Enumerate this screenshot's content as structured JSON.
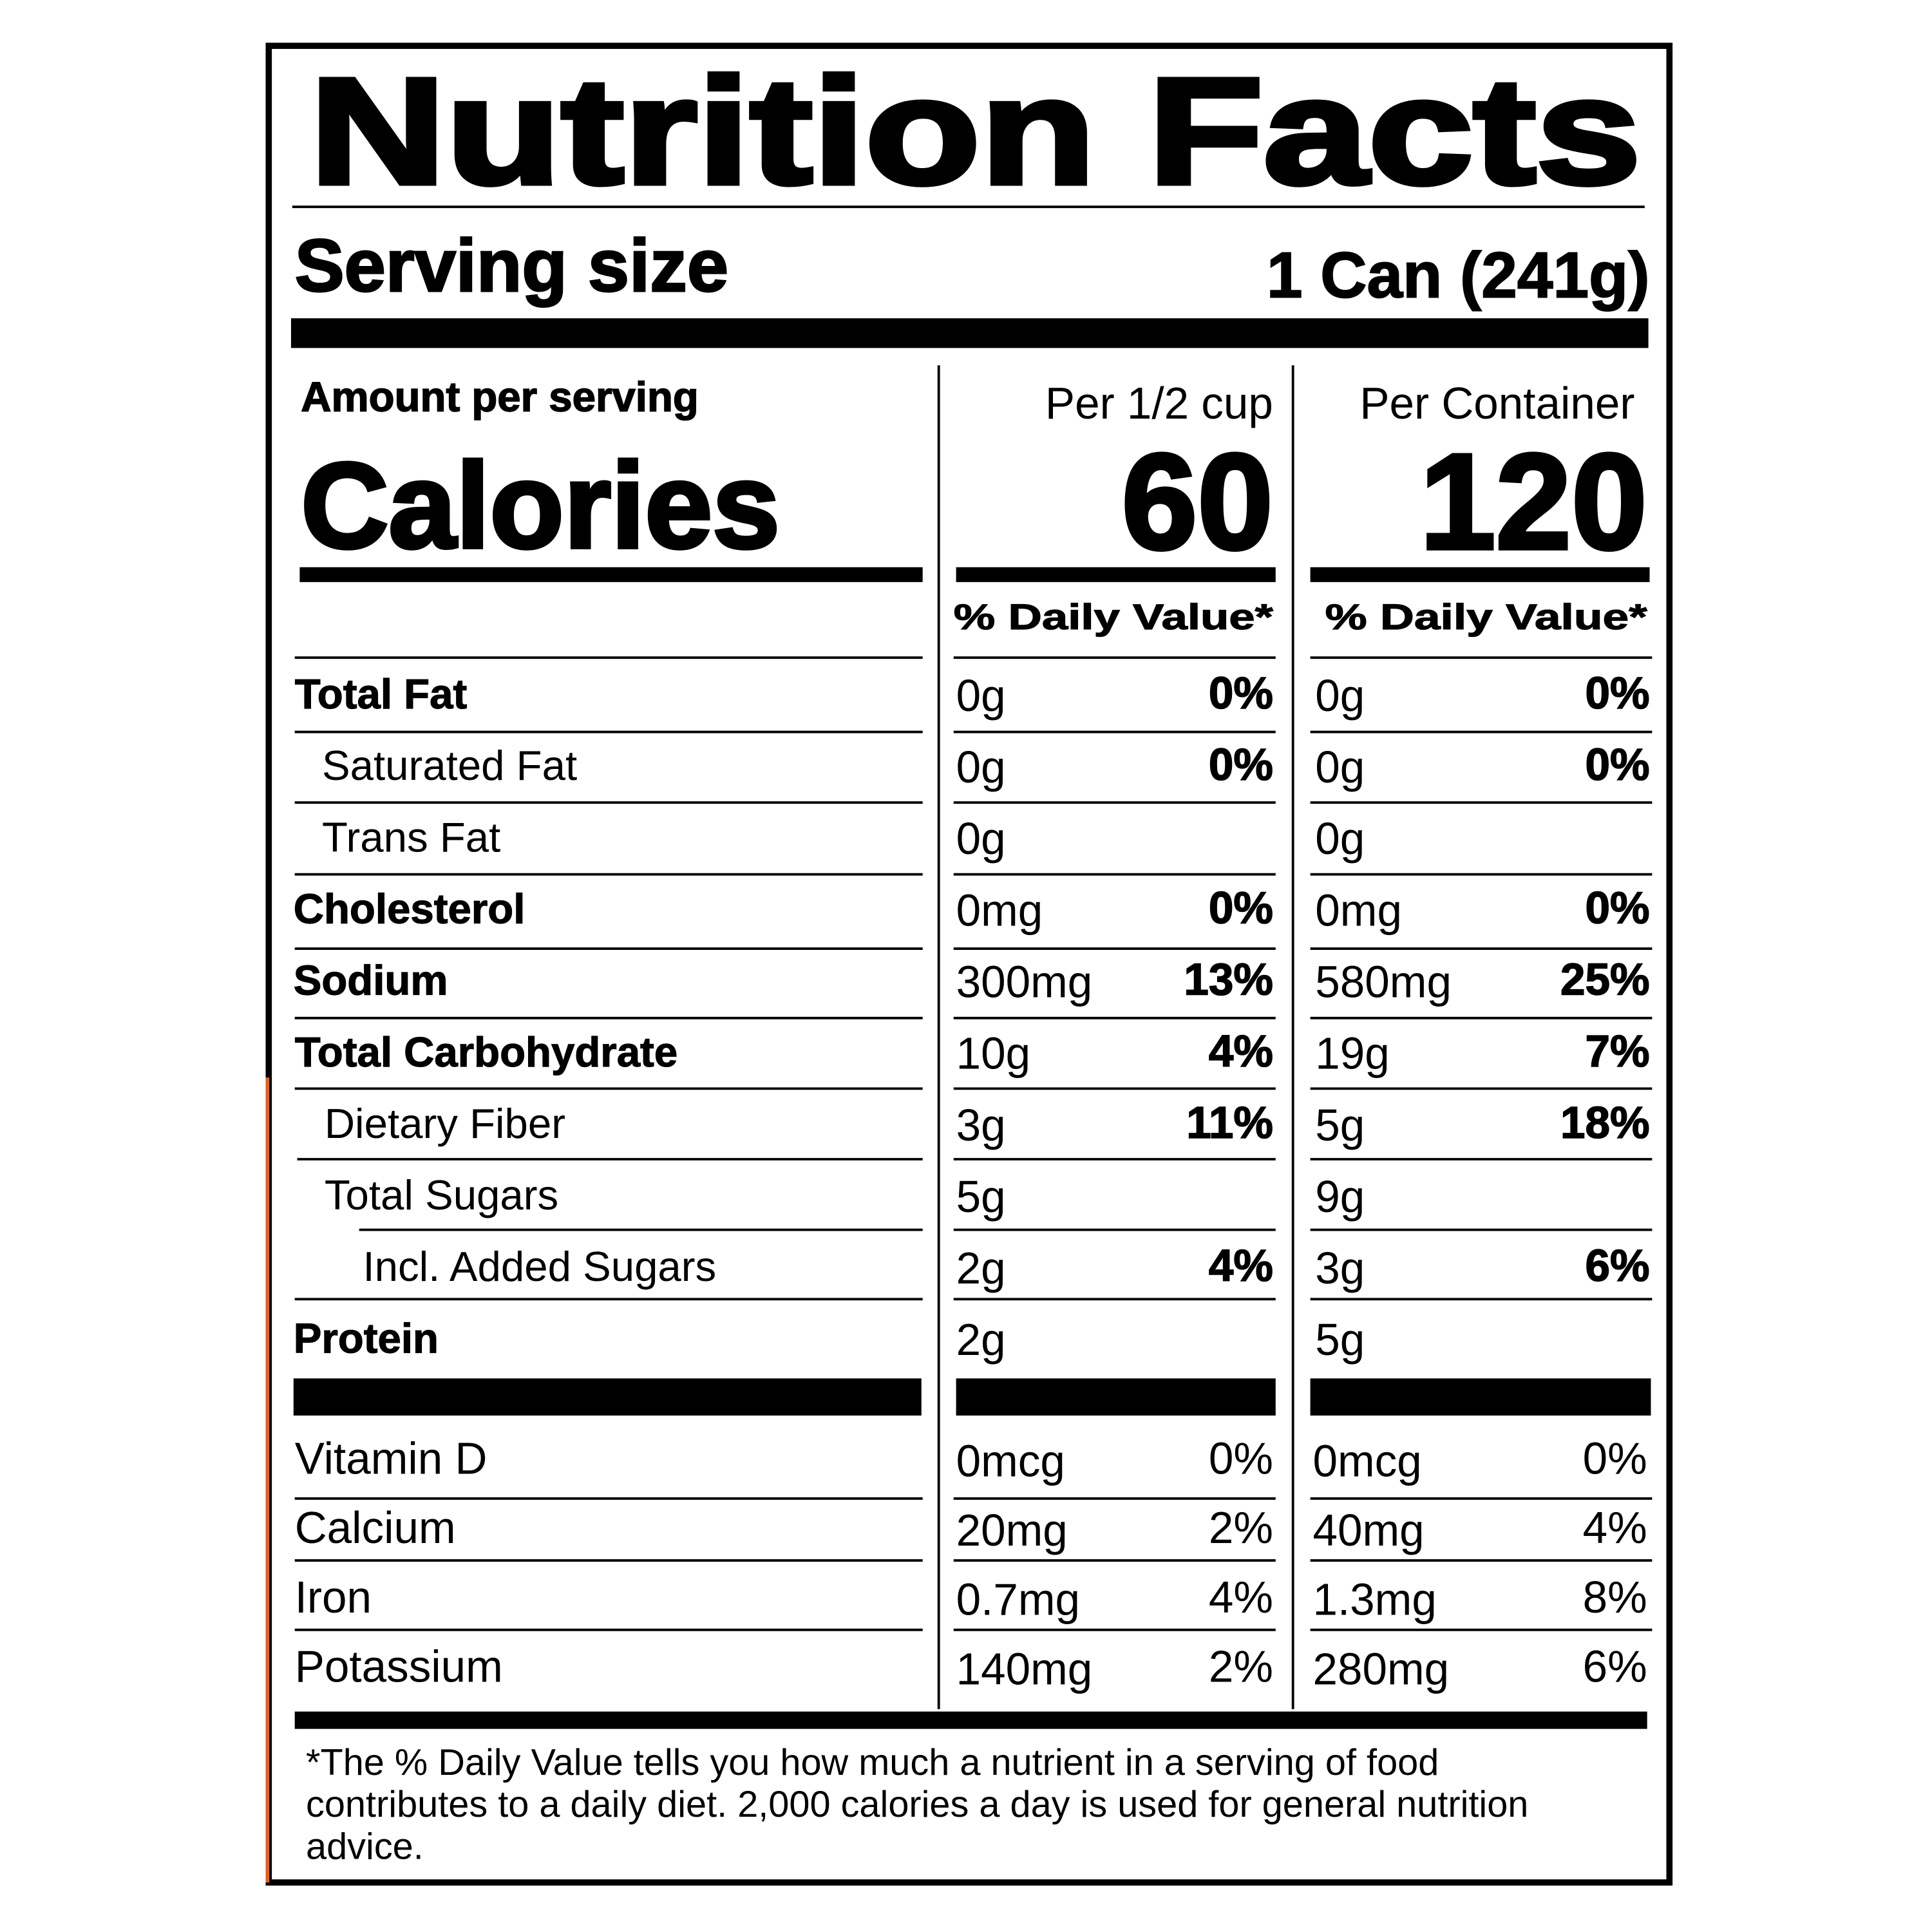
{
  "title": "Nutrition Facts",
  "serving": {
    "label": "Serving size",
    "value": "1 Can (241g)"
  },
  "amount_per_serving": "Amount per serving",
  "calories_label": "Calories",
  "columns": [
    {
      "header": "Per 1/2 cup",
      "calories": "60",
      "daily_value_header": "% Daily Value*"
    },
    {
      "header": "Per Container",
      "calories": "120",
      "daily_value_header": "% Daily Value*"
    }
  ],
  "nutrients": [
    {
      "label": "Total Fat",
      "values": [
        {
          "amount": "0g",
          "dv": "0%"
        },
        {
          "amount": "0g",
          "dv": "0%"
        }
      ]
    },
    {
      "label": "Saturated Fat",
      "values": [
        {
          "amount": "0g",
          "dv": "0%"
        },
        {
          "amount": "0g",
          "dv": "0%"
        }
      ]
    },
    {
      "label": "Trans Fat",
      "values": [
        {
          "amount": "0g"
        },
        {
          "amount": "0g"
        }
      ]
    },
    {
      "label": "Cholesterol",
      "values": [
        {
          "amount": "0mg",
          "dv": "0%"
        },
        {
          "amount": "0mg",
          "dv": "0%"
        }
      ]
    },
    {
      "label": "Sodium",
      "values": [
        {
          "amount": "300mg",
          "dv": "13%"
        },
        {
          "amount": "580mg",
          "dv": "25%"
        }
      ]
    },
    {
      "label": "Total Carbohydrate",
      "values": [
        {
          "amount": "10g",
          "dv": "4%"
        },
        {
          "amount": "19g",
          "dv": "7%"
        }
      ]
    },
    {
      "label": "Dietary Fiber",
      "values": [
        {
          "amount": "3g",
          "dv": "11%"
        },
        {
          "amount": "5g",
          "dv": "18%"
        }
      ]
    },
    {
      "label": "Total Sugars",
      "values": [
        {
          "amount": "5g"
        },
        {
          "amount": "9g"
        }
      ]
    },
    {
      "label": "Incl. Added Sugars",
      "values": [
        {
          "amount": "2g",
          "dv": "4%"
        },
        {
          "amount": "3g",
          "dv": "6%"
        }
      ]
    },
    {
      "label": "Protein",
      "values": [
        {
          "amount": "2g"
        },
        {
          "amount": "5g"
        }
      ]
    }
  ],
  "vitamins": [
    {
      "label": "Vitamin D",
      "values": [
        {
          "amount": "0mcg",
          "dv": "0%"
        },
        {
          "amount": "0mcg",
          "dv": "0%"
        }
      ]
    },
    {
      "label": "Calcium",
      "values": [
        {
          "amount": "20mg",
          "dv": "2%"
        },
        {
          "amount": "40mg",
          "dv": "4%"
        }
      ]
    },
    {
      "label": "Iron",
      "values": [
        {
          "amount": "0.7mg",
          "dv": "4%"
        },
        {
          "amount": "1.3mg",
          "dv": "8%"
        }
      ]
    },
    {
      "label": "Potassium",
      "values": [
        {
          "amount": "140mg",
          "dv": "2%"
        },
        {
          "amount": "280mg",
          "dv": "6%"
        }
      ]
    }
  ],
  "footnote": [
    "*The % Daily Value tells you how much a nutrient in a serving of food",
    "contributes to a daily diet. 2,000 calories a day is used for general nutrition",
    "advice."
  ]
}
